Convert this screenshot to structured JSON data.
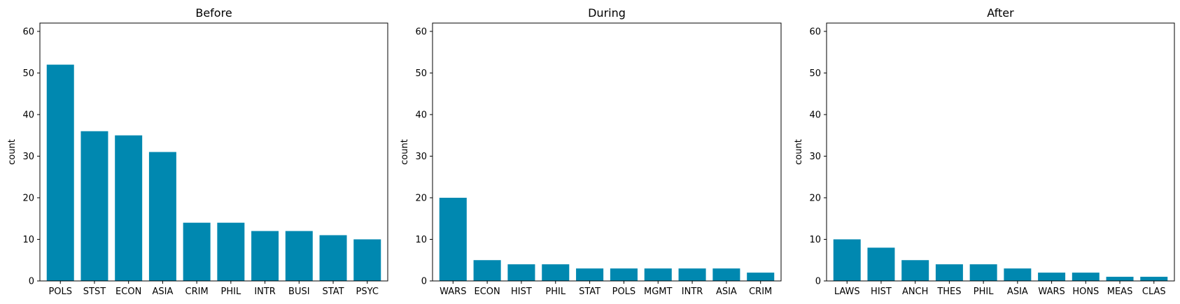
{
  "chart_data": [
    {
      "type": "bar",
      "title": "Before",
      "xlabel": "",
      "ylabel": "count",
      "ylim": [
        0,
        62
      ],
      "yticks": [
        0,
        10,
        20,
        30,
        40,
        50,
        60
      ],
      "categories": [
        "POLS",
        "STST",
        "ECON",
        "ASIA",
        "CRIM",
        "PHIL",
        "INTR",
        "BUSI",
        "STAT",
        "PSYC"
      ],
      "values": [
        52,
        36,
        35,
        31,
        14,
        14,
        12,
        12,
        11,
        10
      ],
      "color": "#0088b0",
      "grid": false
    },
    {
      "type": "bar",
      "title": "During",
      "xlabel": "",
      "ylabel": "count",
      "ylim": [
        0,
        62
      ],
      "yticks": [
        0,
        10,
        20,
        30,
        40,
        50,
        60
      ],
      "categories": [
        "WARS",
        "ECON",
        "HIST",
        "PHIL",
        "STAT",
        "POLS",
        "MGMT",
        "INTR",
        "ASIA",
        "CRIM"
      ],
      "values": [
        20,
        5,
        4,
        4,
        3,
        3,
        3,
        3,
        3,
        2
      ],
      "color": "#0088b0",
      "grid": false
    },
    {
      "type": "bar",
      "title": "After",
      "xlabel": "",
      "ylabel": "count",
      "ylim": [
        0,
        62
      ],
      "yticks": [
        0,
        10,
        20,
        30,
        40,
        50,
        60
      ],
      "categories": [
        "LAWS",
        "HIST",
        "ANCH",
        "THES",
        "PHIL",
        "ASIA",
        "WARS",
        "HONS",
        "MEAS",
        "CLAS"
      ],
      "values": [
        10,
        8,
        5,
        4,
        4,
        3,
        2,
        2,
        1,
        1
      ],
      "color": "#0088b0",
      "grid": false
    }
  ]
}
